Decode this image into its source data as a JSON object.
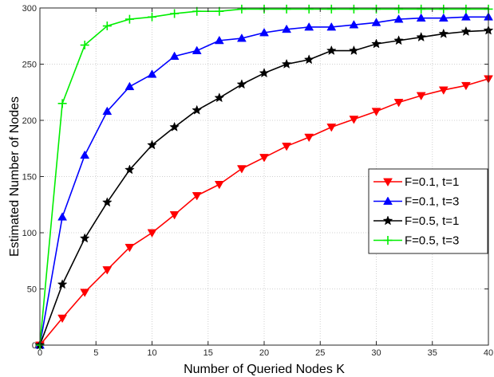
{
  "chart_data": {
    "type": "line",
    "xlabel": "Number of Queried Nodes K",
    "ylabel": "Estimated Number of Nodes",
    "xlim": [
      0,
      40
    ],
    "ylim": [
      0,
      300
    ],
    "xticks": [
      0,
      5,
      10,
      15,
      20,
      25,
      30,
      35,
      40
    ],
    "yticks": [
      0,
      50,
      100,
      150,
      200,
      250,
      300
    ],
    "grid": true,
    "legend_position": "right-middle",
    "x": [
      0,
      2,
      4,
      6,
      8,
      10,
      12,
      14,
      16,
      18,
      20,
      22,
      24,
      26,
      28,
      30,
      32,
      34,
      36,
      38,
      40
    ],
    "series": [
      {
        "name": "F=0.1, t=1",
        "color": "#ff0000",
        "marker": "triangle-down",
        "values": [
          0,
          24,
          47,
          67,
          87,
          100,
          116,
          133,
          143,
          157,
          167,
          177,
          185,
          194,
          201,
          208,
          216,
          222,
          227,
          231,
          237
        ]
      },
      {
        "name": "F=0.1, t=3",
        "color": "#0000ff",
        "marker": "triangle-up",
        "values": [
          0,
          114,
          169,
          208,
          230,
          241,
          257,
          262,
          271,
          273,
          278,
          281,
          283,
          283,
          285,
          287,
          290,
          291,
          291,
          292,
          292
        ]
      },
      {
        "name": "F=0.5, t=1",
        "color": "#000000",
        "marker": "star",
        "values": [
          0,
          54,
          95,
          127,
          156,
          178,
          194,
          209,
          220,
          232,
          242,
          250,
          254,
          262,
          262,
          268,
          271,
          274,
          277,
          279,
          280
        ]
      },
      {
        "name": "F=0.5, t=3",
        "color": "#00ee00",
        "marker": "plus",
        "values": [
          0,
          215,
          267,
          284,
          290,
          292,
          295,
          297,
          297,
          299,
          299,
          299,
          299,
          299,
          299,
          299,
          299,
          299,
          299,
          299,
          299
        ]
      }
    ]
  }
}
